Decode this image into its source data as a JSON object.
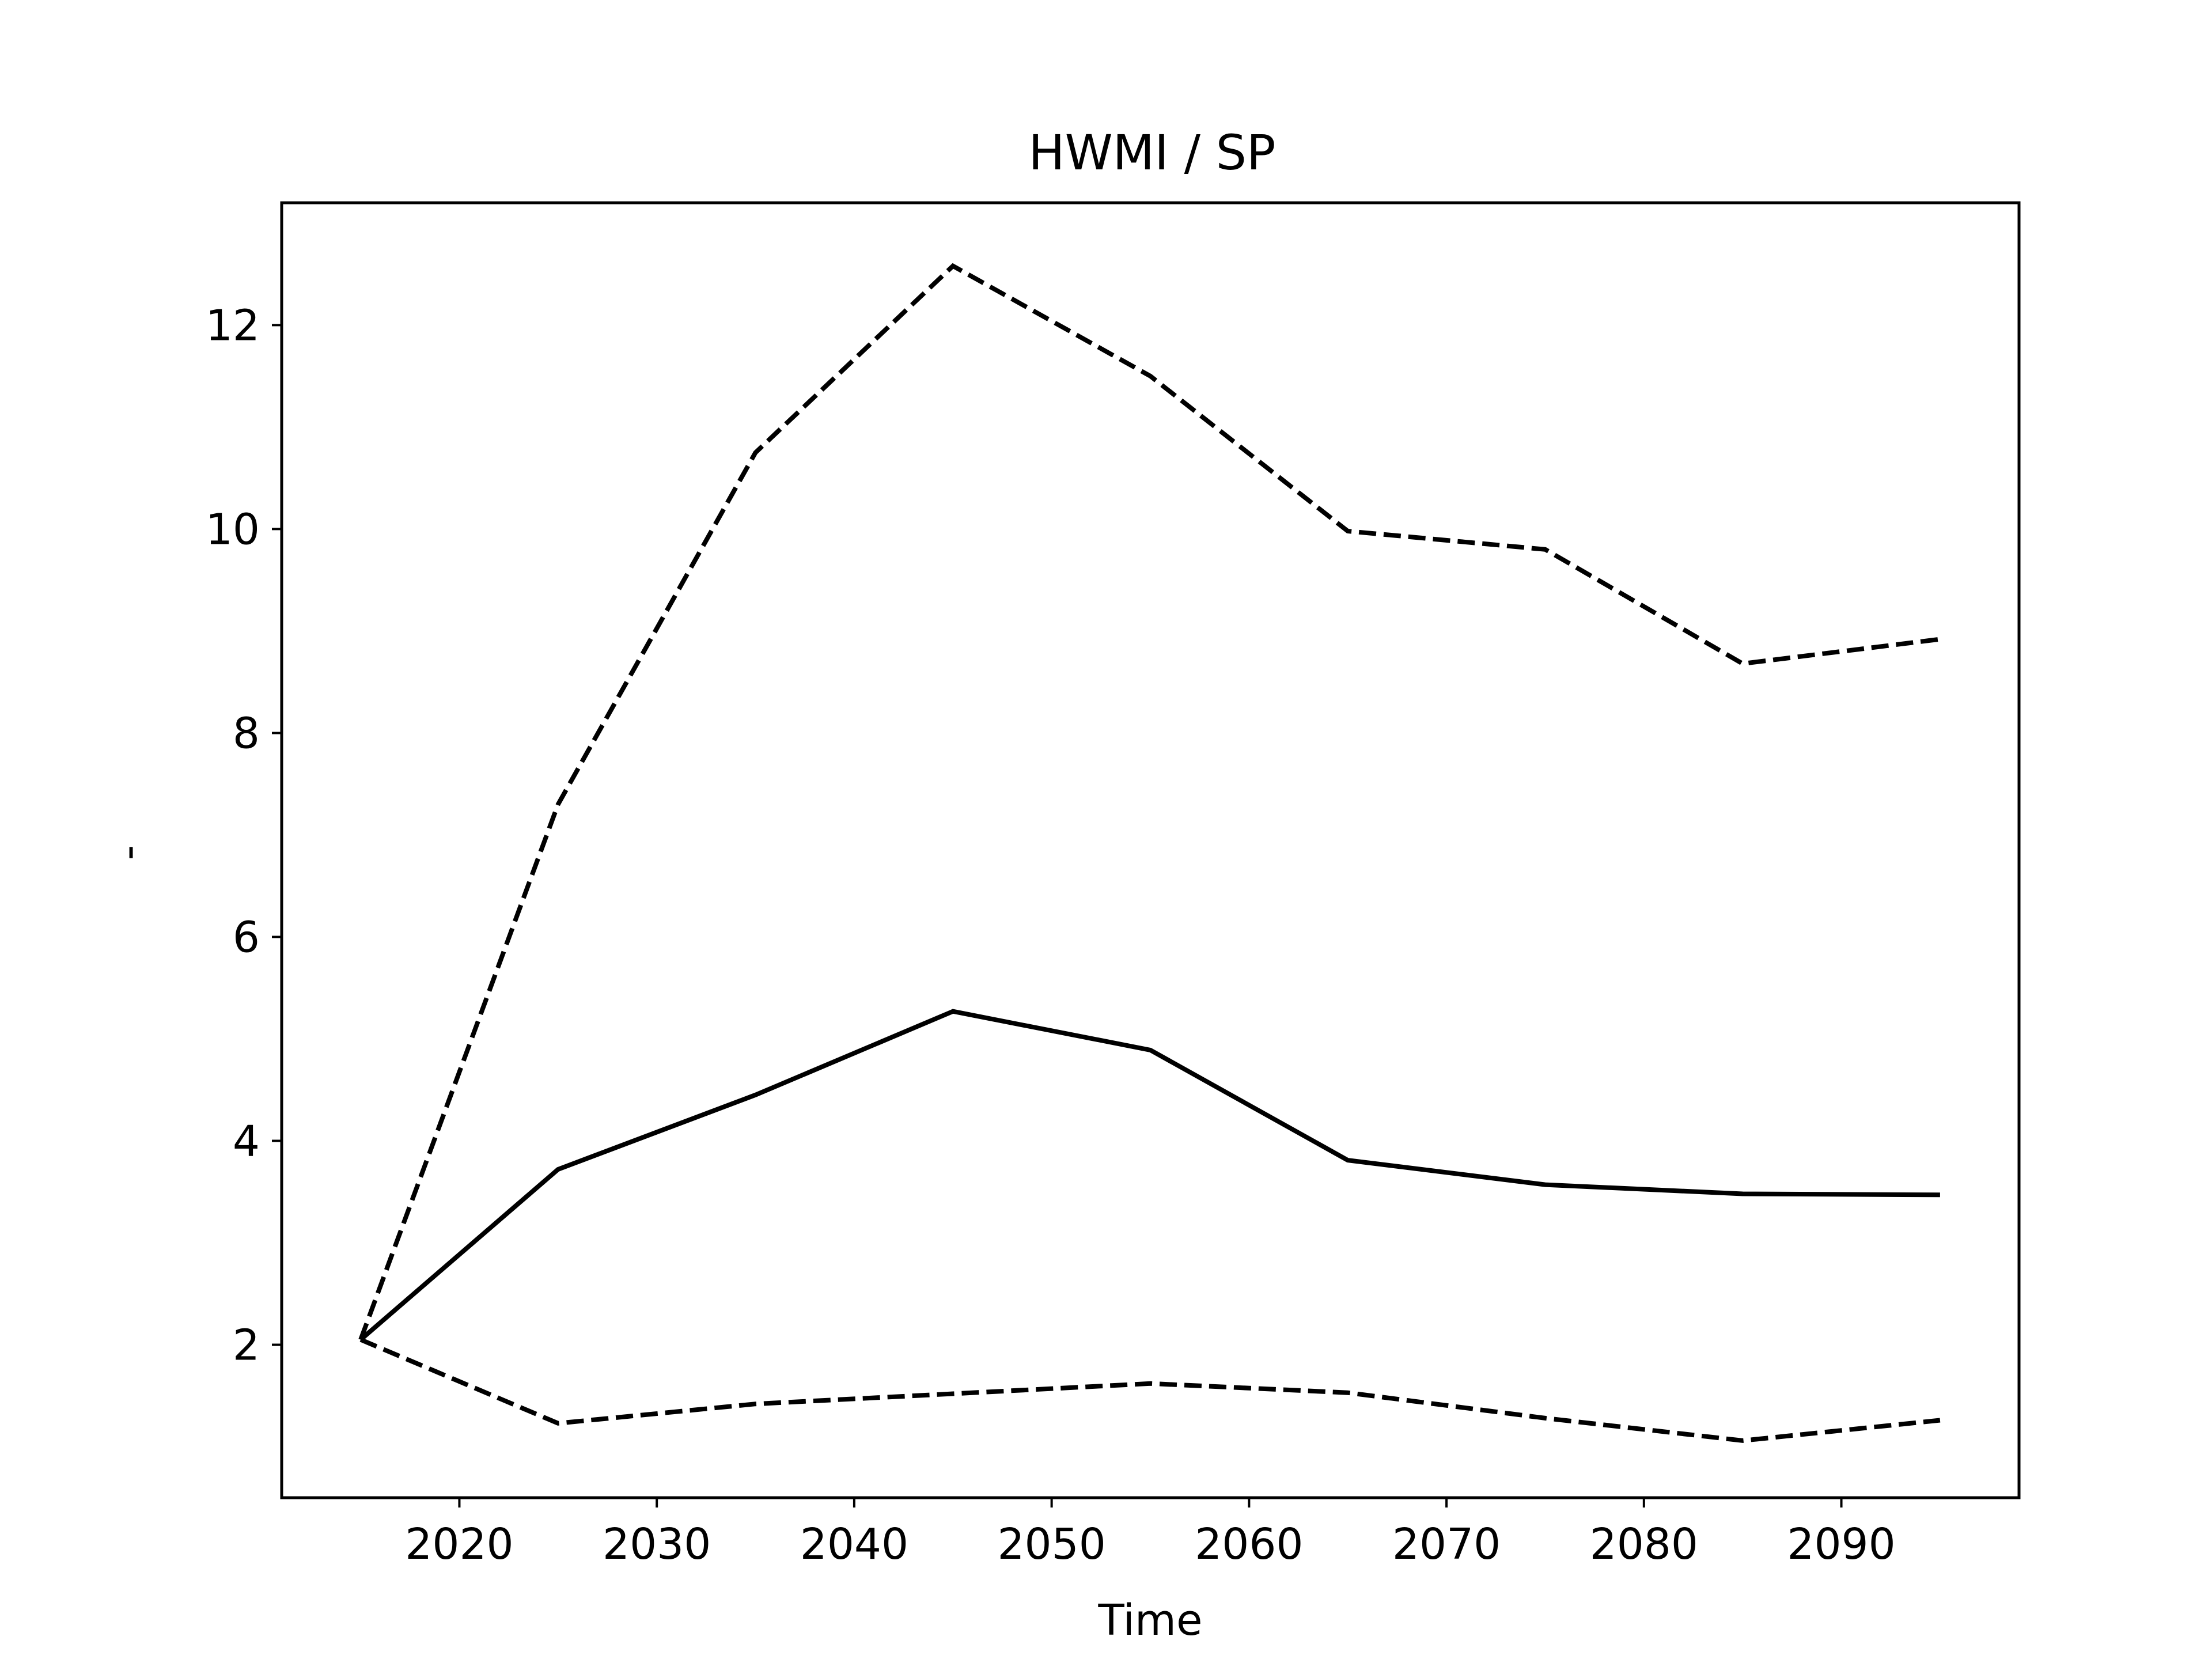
{
  "chart_data": {
    "type": "line",
    "title": "HWMI / SP",
    "xlabel": "Time",
    "ylabel": "-",
    "xlim": [
      2011,
      2099
    ],
    "ylim": [
      0.5,
      13.2
    ],
    "xticks": [
      2020,
      2030,
      2040,
      2050,
      2060,
      2070,
      2080,
      2090
    ],
    "yticks": [
      2,
      4,
      6,
      8,
      10,
      12
    ],
    "grid": false,
    "x": [
      2015,
      2025,
      2035,
      2045,
      2055,
      2065,
      2075,
      2085,
      2095
    ],
    "series": [
      {
        "style": "solid",
        "color": "#000000",
        "values": [
          2.05,
          3.72,
          4.45,
          5.27,
          4.89,
          3.81,
          3.57,
          3.48,
          3.47
        ]
      },
      {
        "style": "dashed",
        "color": "#000000",
        "values": [
          2.05,
          7.3,
          10.75,
          12.58,
          11.5,
          9.98,
          9.8,
          8.68,
          8.92
        ]
      },
      {
        "style": "dashed",
        "color": "#000000",
        "values": [
          2.05,
          1.23,
          1.42,
          1.52,
          1.62,
          1.53,
          1.28,
          1.06,
          1.26
        ]
      }
    ]
  }
}
